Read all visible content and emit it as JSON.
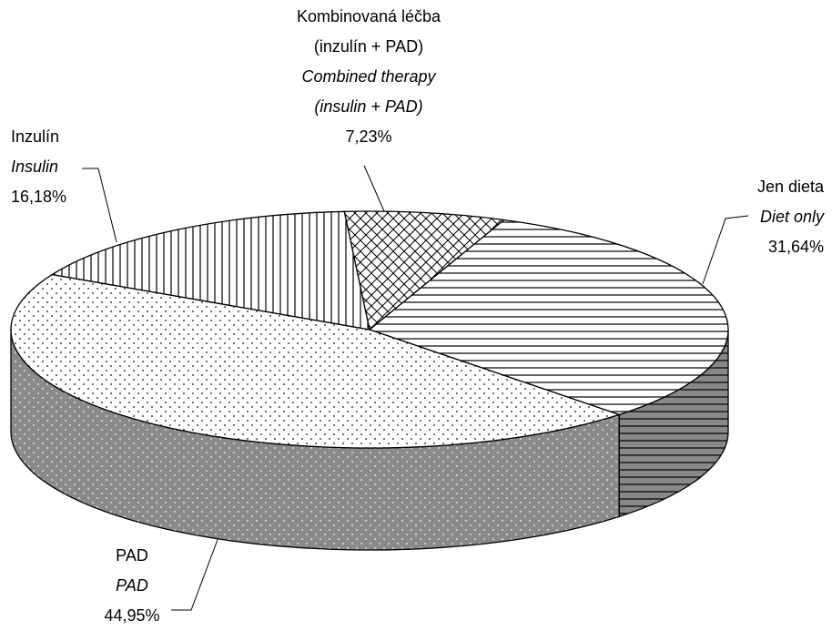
{
  "chart_data": {
    "type": "pie3d",
    "categories": [
      "Jen dieta",
      "PAD",
      "Inzulín",
      "Kombinovaná léčba (inzulín + PAD)"
    ],
    "categories_en": [
      "Diet only",
      "PAD",
      "Insulin",
      "Combined therapy (insulin + PAD)"
    ],
    "values": [
      31.64,
      44.95,
      16.18,
      7.23
    ],
    "value_labels": [
      "31,64%",
      "44,95%",
      "16,18%",
      "7,23%"
    ],
    "patterns": [
      "hlines",
      "dots",
      "vlines",
      "crosshatch"
    ]
  }
}
